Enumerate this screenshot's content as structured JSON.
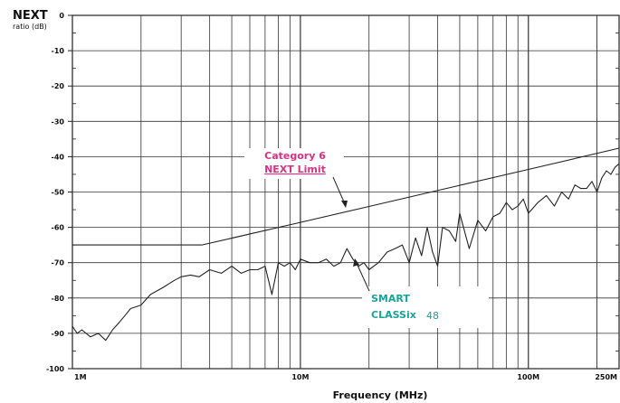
{
  "chart_data": {
    "type": "line",
    "ylabel_main": "NEXT",
    "ylabel_sub": "ratio (dB)",
    "xlabel": "Frequency (MHz)",
    "x_scale": "log",
    "xlim": [
      1,
      250
    ],
    "ylim": [
      -100,
      0
    ],
    "yticks": [
      0,
      -10,
      -20,
      -30,
      -40,
      -50,
      -60,
      -70,
      -80,
      -90,
      -100
    ],
    "ytick_labels": [
      "0",
      "-10",
      "-20",
      "-30",
      "-40",
      "-50",
      "-60",
      "-70",
      "-80",
      "-90",
      "-100"
    ],
    "xticks": [
      1,
      10,
      100,
      250
    ],
    "xtick_labels": [
      "1M",
      "10M",
      "100M",
      "250M"
    ],
    "grid": true,
    "series": [
      {
        "name": "Category 6 NEXT Limit",
        "color": "#222222",
        "x": [
          1,
          2,
          3.7,
          10,
          20,
          50,
          100,
          250
        ],
        "y": [
          -65,
          -65,
          -65,
          -58.6,
          -54.1,
          -48.1,
          -43.6,
          -37.6
        ]
      },
      {
        "name": "SMART CLASSix 48",
        "color": "#222222",
        "x": [
          1,
          1.05,
          1.1,
          1.2,
          1.3,
          1.4,
          1.5,
          1.6,
          1.7,
          1.8,
          2,
          2.2,
          2.5,
          2.8,
          3,
          3.3,
          3.6,
          4,
          4.5,
          5,
          5.5,
          6,
          6.5,
          7,
          7.5,
          8,
          8.5,
          9,
          9.5,
          10,
          11,
          12,
          13,
          14,
          15,
          16,
          17,
          18,
          19,
          20,
          22,
          24,
          26,
          28,
          30,
          32,
          34,
          36,
          38,
          40,
          42,
          45,
          48,
          50,
          55,
          60,
          65,
          70,
          75,
          80,
          85,
          90,
          95,
          100,
          110,
          120,
          130,
          140,
          150,
          160,
          170,
          180,
          190,
          200,
          210,
          220,
          230,
          240,
          250
        ],
        "y": [
          -88,
          -90,
          -89,
          -91,
          -90,
          -92,
          -89,
          -87,
          -85,
          -83,
          -82,
          -79,
          -77,
          -75,
          -74,
          -73.5,
          -74,
          -72,
          -73,
          -71,
          -73,
          -72,
          -72,
          -71,
          -79,
          -70,
          -71,
          -70,
          -72,
          -69,
          -70,
          -70,
          -69,
          -71,
          -70,
          -66,
          -69,
          -71,
          -70,
          -72,
          -70,
          -67,
          -66,
          -65,
          -70,
          -63,
          -68,
          -60,
          -67,
          -71,
          -60,
          -61,
          -64,
          -56,
          -66,
          -58,
          -61,
          -57,
          -56,
          -53,
          -55,
          -54,
          -52,
          -56,
          -53,
          -51,
          -54,
          -50,
          -52,
          -48,
          -49,
          -49,
          -47,
          -50,
          -46,
          -44,
          -45,
          -43,
          -42
        ]
      }
    ],
    "annotations": [
      {
        "line1": "Category 6",
        "line2": "NEXT Limit",
        "color": "#d63384"
      },
      {
        "line1": "SMART",
        "line2": "CLASSix",
        "suffix": "48",
        "color": "#1aa39b"
      }
    ]
  }
}
